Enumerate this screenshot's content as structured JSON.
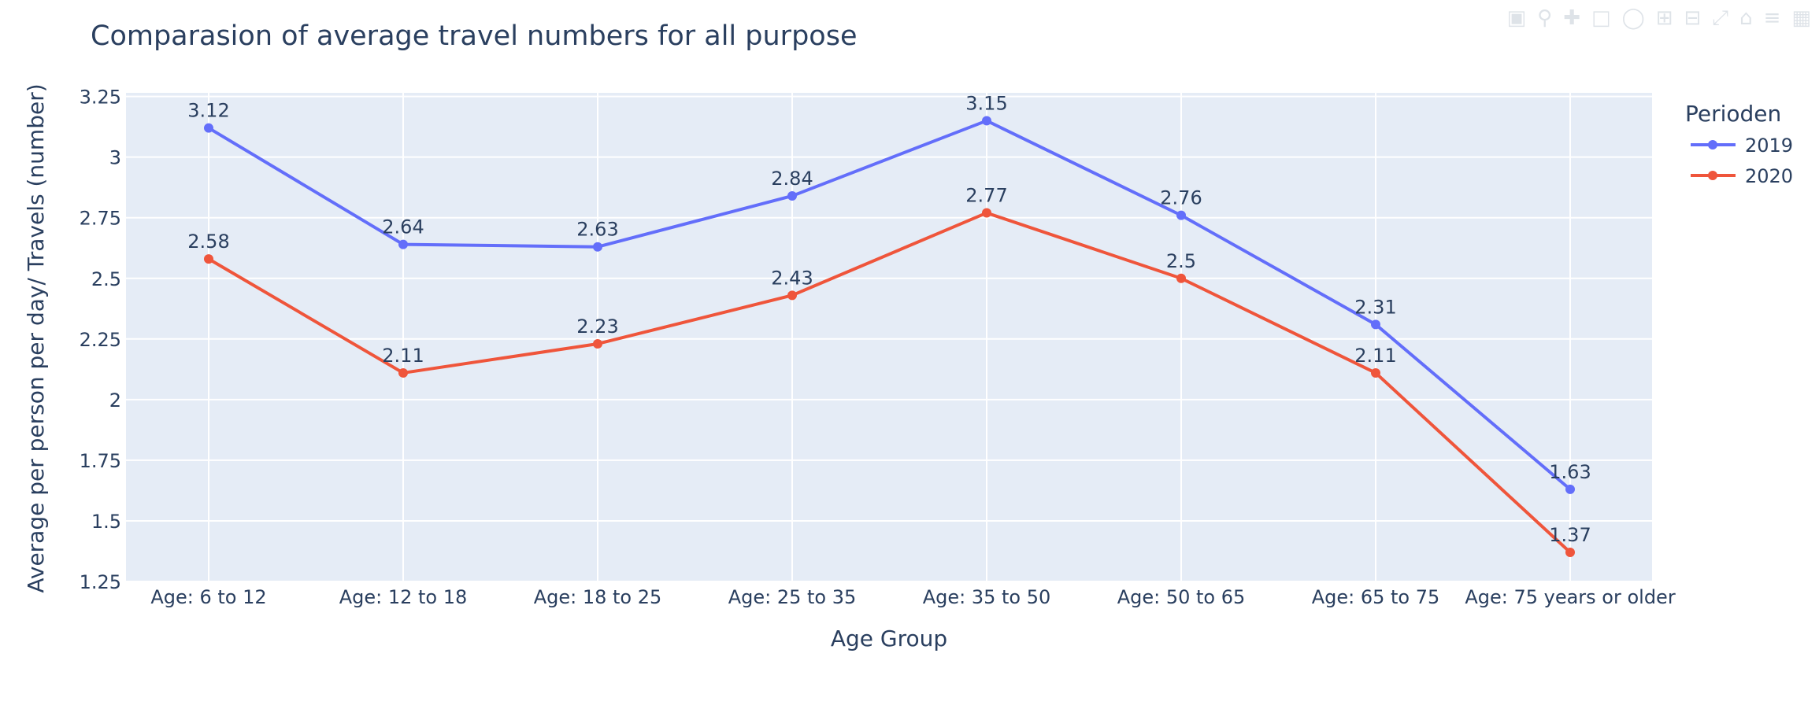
{
  "chart_data": {
    "type": "line",
    "title": "Comparasion of average travel numbers for all purpose",
    "xlabel": "Age Group",
    "ylabel": "Average per person per day/ Travels (number)",
    "categories": [
      "Age: 6 to 12",
      "Age: 12 to 18",
      "Age: 18 to 25",
      "Age: 25 to 35",
      "Age: 35 to 50",
      "Age: 50 to 65",
      "Age: 65 to 75",
      "Age: 75 years or older"
    ],
    "series": [
      {
        "name": "2019",
        "color": "#636efa",
        "values": [
          3.12,
          2.64,
          2.63,
          2.84,
          3.15,
          2.76,
          2.31,
          1.63
        ],
        "labels": [
          "3.12",
          "2.64",
          "2.63",
          "2.84",
          "3.15",
          "2.76",
          "2.31",
          "1.63"
        ]
      },
      {
        "name": "2020",
        "color": "#ef553b",
        "values": [
          2.58,
          2.11,
          2.23,
          2.43,
          2.77,
          2.5,
          2.11,
          1.37
        ],
        "labels": [
          "2.58",
          "2.11",
          "2.23",
          "2.43",
          "2.77",
          "2.5",
          "2.11",
          "1.37"
        ]
      }
    ],
    "ylim": [
      1.25,
      3.265
    ],
    "yticks": [
      1.25,
      1.5,
      1.75,
      2,
      2.25,
      2.5,
      2.75,
      3,
      3.25
    ],
    "ytick_labels": [
      "1.25",
      "1.5",
      "1.75",
      "2",
      "2.25",
      "2.5",
      "2.75",
      "3",
      "3.25"
    ],
    "grid": true,
    "legend": {
      "title": "Perioden",
      "position": "top-right"
    },
    "colors": {
      "plot_bg": "#e5ecf6",
      "grid": "#ffffff",
      "text": "#2a3f5f"
    }
  },
  "modebar": {
    "icons": [
      "camera-icon",
      "zoom-icon",
      "pan-icon",
      "box-select-icon",
      "lasso-select-icon",
      "zoom-in-icon",
      "zoom-out-icon",
      "autoscale-icon",
      "reset-axes-icon",
      "spike-lines-icon",
      "plotly-logo-icon"
    ]
  }
}
